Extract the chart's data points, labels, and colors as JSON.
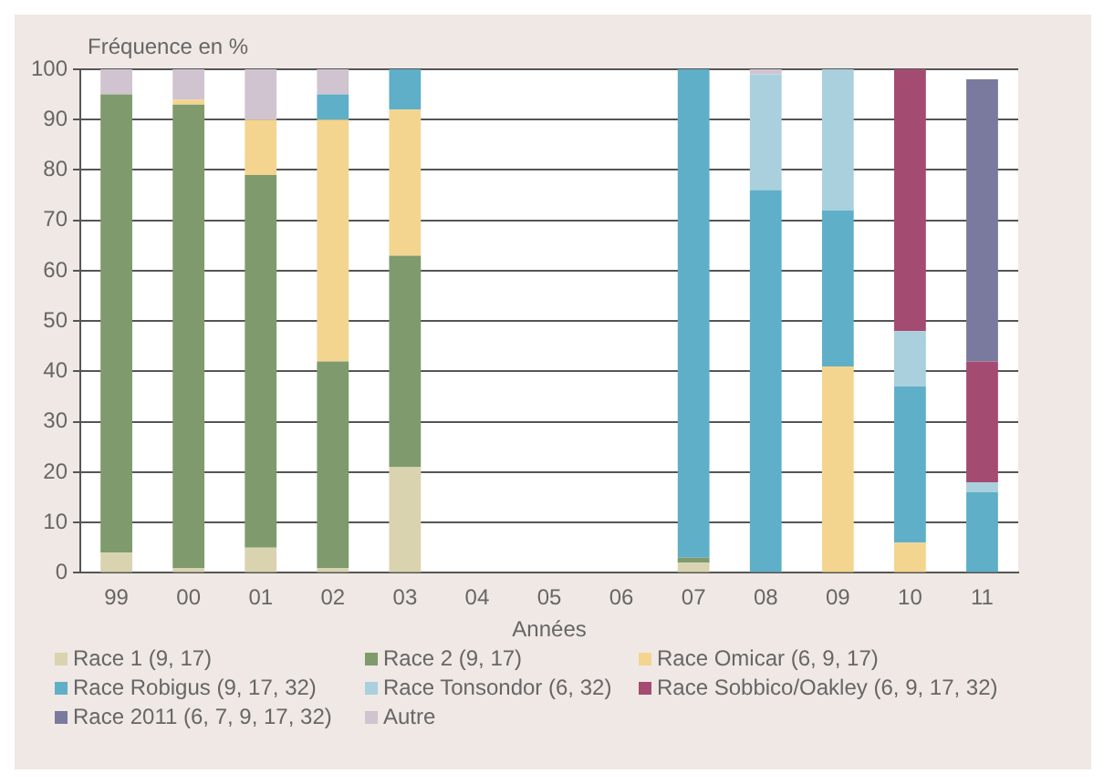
{
  "chart_data": {
    "type": "bar",
    "stacked": true,
    "xlabel": "Années",
    "ylabel": "Fréquence en %",
    "categories": [
      "99",
      "00",
      "01",
      "02",
      "03",
      "04",
      "05",
      "06",
      "07",
      "08",
      "09",
      "10",
      "11"
    ],
    "series": [
      {
        "name": "Race 1 (9, 17)",
        "color": "#d9d3b0",
        "values": [
          4,
          1,
          5,
          1,
          21,
          null,
          null,
          null,
          2,
          null,
          null,
          null,
          null
        ]
      },
      {
        "name": "Race 2 (9, 17)",
        "color": "#7f9a6c",
        "values": [
          91,
          92,
          74,
          41,
          42,
          null,
          null,
          null,
          1,
          null,
          null,
          null,
          null
        ]
      },
      {
        "name": "Race Omicar (6, 9, 17)",
        "color": "#f3d58f",
        "values": [
          null,
          1,
          11,
          48,
          29,
          null,
          null,
          null,
          null,
          null,
          41,
          6,
          null
        ]
      },
      {
        "name": "Race Robigus (9, 17, 32)",
        "color": "#5fafc8",
        "values": [
          null,
          null,
          null,
          5,
          8,
          null,
          null,
          null,
          97,
          76,
          31,
          31,
          16
        ]
      },
      {
        "name": "Race Tonsondor (6, 32)",
        "color": "#a9d0dc",
        "values": [
          null,
          null,
          null,
          null,
          null,
          null,
          null,
          null,
          null,
          23,
          28,
          11,
          2
        ]
      },
      {
        "name": "Race Sobbico/Oakley (6, 9, 17, 32)",
        "color": "#a44b72",
        "values": [
          null,
          null,
          null,
          null,
          null,
          null,
          null,
          null,
          null,
          null,
          null,
          52,
          24
        ]
      },
      {
        "name": "Race 2011 (6, 7, 9, 17, 32)",
        "color": "#7a7a9e",
        "values": [
          null,
          null,
          null,
          null,
          null,
          null,
          null,
          null,
          null,
          null,
          null,
          null,
          56
        ]
      },
      {
        "name": "Autre",
        "color": "#cfc4cf",
        "values": [
          5,
          6,
          10,
          5,
          null,
          null,
          null,
          null,
          null,
          1,
          null,
          null,
          null
        ]
      }
    ],
    "ylim": [
      0,
      100
    ],
    "yticks": [
      0,
      10,
      20,
      30,
      40,
      50,
      60,
      70,
      80,
      90,
      100
    ],
    "grid": "y",
    "legend": "bottom"
  }
}
